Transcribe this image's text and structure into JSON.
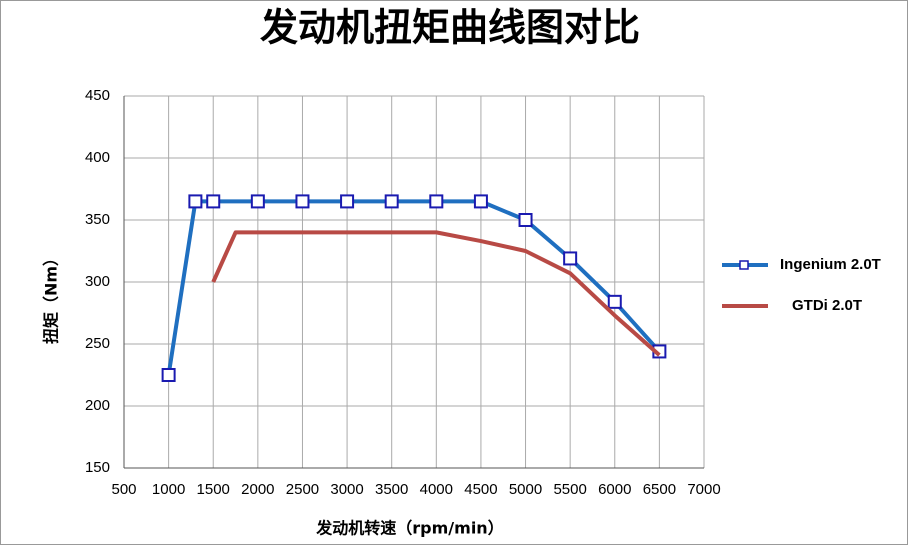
{
  "chart_data": {
    "type": "line",
    "title": "发动机扭矩曲线图对比",
    "x_label": "发动机转速（rpm/min）",
    "y_label": "扭矩（Nm）",
    "xlim": [
      500,
      7000
    ],
    "xticks": [
      500,
      1000,
      1500,
      2000,
      2500,
      3000,
      3500,
      4000,
      4500,
      5000,
      5500,
      6000,
      6500,
      7000
    ],
    "ylim": [
      150,
      450
    ],
    "yticks": [
      150,
      200,
      250,
      300,
      350,
      400,
      450
    ],
    "grid": true,
    "legend": "right",
    "series": [
      {
        "name": "Ingenium 2.0T",
        "color": "#1f6fc0",
        "marker": "square",
        "x": [
          1000,
          1300,
          1500,
          2000,
          2500,
          3000,
          3500,
          4000,
          4500,
          5000,
          5500,
          6000,
          6500
        ],
        "values": [
          225,
          365,
          365,
          365,
          365,
          365,
          365,
          365,
          365,
          350,
          319,
          284,
          244
        ]
      },
      {
        "name": "GTDi 2.0T",
        "color": "#b84a45",
        "x": [
          1500,
          1750,
          2000,
          2500,
          3000,
          3500,
          4000,
          4500,
          5000,
          5500,
          6000,
          6500
        ],
        "values": [
          300,
          340,
          340,
          340,
          340,
          340,
          340,
          333,
          325,
          307,
          273,
          241
        ]
      }
    ]
  }
}
